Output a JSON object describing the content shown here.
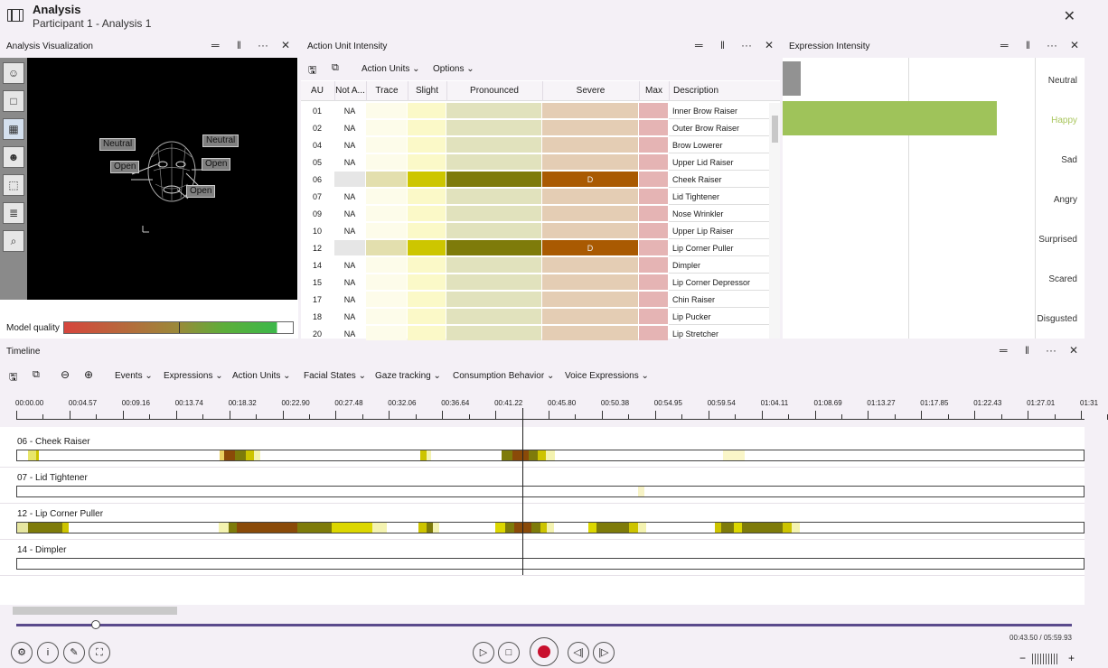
{
  "app": {
    "title": "Analysis",
    "subtitle": "Participant 1 - Analysis 1",
    "close": "✕"
  },
  "panel_controls": {
    "minimize": "═",
    "pin": "‖",
    "more": "···",
    "close": "✕"
  },
  "viz": {
    "title": "Analysis Visualization",
    "tools": [
      "person-icon",
      "square-icon",
      "grid-icon",
      "face-icon",
      "frame-icon",
      "chart-icon",
      "magnifier-icon"
    ],
    "face_labels": [
      "Neutral",
      "Neutral",
      "Open",
      "Open",
      "Open"
    ],
    "model_quality_label": "Model quality",
    "model_quality": 0.93
  },
  "au": {
    "title": "Action Unit Intensity",
    "toolbar": {
      "action_units": "Action Units",
      "options": "Options"
    },
    "columns": [
      "AU",
      "Not A...",
      "Trace",
      "Slight",
      "Pronounced",
      "Severe",
      "Max",
      "Description"
    ],
    "rows": [
      {
        "au": "01",
        "na": "NA",
        "sv": "",
        "desc": "Inner Brow Raiser",
        "hot": false
      },
      {
        "au": "02",
        "na": "NA",
        "sv": "",
        "desc": "Outer Brow Raiser",
        "hot": false
      },
      {
        "au": "04",
        "na": "NA",
        "sv": "",
        "desc": "Brow Lowerer",
        "hot": false
      },
      {
        "au": "05",
        "na": "NA",
        "sv": "",
        "desc": "Upper Lid Raiser",
        "hot": false
      },
      {
        "au": "06",
        "na": "",
        "sv": "D",
        "desc": "Cheek Raiser",
        "hot": true
      },
      {
        "au": "07",
        "na": "NA",
        "sv": "",
        "desc": "Lid Tightener",
        "hot": false
      },
      {
        "au": "09",
        "na": "NA",
        "sv": "",
        "desc": "Nose Wrinkler",
        "hot": false
      },
      {
        "au": "10",
        "na": "NA",
        "sv": "",
        "desc": "Upper Lip Raiser",
        "hot": false
      },
      {
        "au": "12",
        "na": "",
        "sv": "D",
        "desc": "Lip Corner Puller",
        "hot": true
      },
      {
        "au": "14",
        "na": "NA",
        "sv": "",
        "desc": "Dimpler",
        "hot": false
      },
      {
        "au": "15",
        "na": "NA",
        "sv": "",
        "desc": "Lip Corner Depressor",
        "hot": false
      },
      {
        "au": "17",
        "na": "NA",
        "sv": "",
        "desc": "Chin Raiser",
        "hot": false
      },
      {
        "au": "18",
        "na": "NA",
        "sv": "",
        "desc": "Lip Pucker",
        "hot": false
      },
      {
        "au": "20",
        "na": "NA",
        "sv": "",
        "desc": "Lip Stretcher",
        "hot": false
      }
    ]
  },
  "expression": {
    "title": "Expression Intensity",
    "labels": [
      "Neutral",
      "Happy",
      "Sad",
      "Angry",
      "Surprised",
      "Scared",
      "Disgusted"
    ],
    "values": [
      0.07,
      0.85,
      0,
      0,
      0,
      0,
      0
    ],
    "colors": [
      "#8c8c8c",
      "#9fc35a",
      "#9fc35a",
      "#9fc35a",
      "#9fc35a",
      "#9fc35a",
      "#9fc35a"
    ],
    "active_label_color": "#a9c65d"
  },
  "timeline": {
    "title": "Timeline",
    "menus": [
      "Events",
      "Expressions",
      "Action Units",
      "Facial States",
      "Gaze tracking",
      "Consumption Behavior",
      "Voice Expressions"
    ],
    "ticks": [
      "00:00.00",
      "00:04.57",
      "00:09.16",
      "00:13.74",
      "00:18.32",
      "00:22.90",
      "00:27.48",
      "00:32.06",
      "00:36.64",
      "00:41.22",
      "00:45.80",
      "00:50.38",
      "00:54.95",
      "00:59.54",
      "01:04.11",
      "01:08.69",
      "01:13.27",
      "01:17.85",
      "01:22.43",
      "01:27.01",
      "01:31"
    ],
    "tracks": [
      {
        "name": "06 - Cheek Raiser",
        "segments": [
          [
            0.01,
            0.018,
            "#e8e66a"
          ],
          [
            0.018,
            0.02,
            "#cdc400"
          ],
          [
            0.19,
            0.194,
            "#e9d060"
          ],
          [
            0.194,
            0.204,
            "#8a4a08"
          ],
          [
            0.204,
            0.214,
            "#7e7b0a"
          ],
          [
            0.214,
            0.222,
            "#cdc400"
          ],
          [
            0.222,
            0.228,
            "#f4f3b0"
          ],
          [
            0.378,
            0.384,
            "#cdc400"
          ],
          [
            0.384,
            0.388,
            "#f4f3b0"
          ],
          [
            0.454,
            0.464,
            "#7e7b0a"
          ],
          [
            0.464,
            0.48,
            "#8a4a08"
          ],
          [
            0.48,
            0.488,
            "#7e7b0a"
          ],
          [
            0.488,
            0.496,
            "#cdc400"
          ],
          [
            0.496,
            0.504,
            "#f4f3b0"
          ],
          [
            0.662,
            0.682,
            "#faf6c8"
          ]
        ]
      },
      {
        "name": "07 - Lid Tightener",
        "segments": [
          [
            0.582,
            0.588,
            "#f7f3c6"
          ]
        ]
      },
      {
        "name": "12 - Lip Corner Puller",
        "segments": [
          [
            0.0,
            0.01,
            "#e6e6a0"
          ],
          [
            0.01,
            0.042,
            "#7e7b0a"
          ],
          [
            0.042,
            0.048,
            "#cdc400"
          ],
          [
            0.189,
            0.198,
            "#f4f3b0"
          ],
          [
            0.198,
            0.206,
            "#7e7b0a"
          ],
          [
            0.206,
            0.263,
            "#8a4a08"
          ],
          [
            0.263,
            0.295,
            "#7e7b0a"
          ],
          [
            0.295,
            0.333,
            "#dcd700"
          ],
          [
            0.333,
            0.347,
            "#f4f3b0"
          ],
          [
            0.376,
            0.384,
            "#cdc400"
          ],
          [
            0.384,
            0.39,
            "#7e7b0a"
          ],
          [
            0.39,
            0.396,
            "#f4f3b0"
          ],
          [
            0.448,
            0.458,
            "#dcd700"
          ],
          [
            0.458,
            0.466,
            "#7e7b0a"
          ],
          [
            0.466,
            0.482,
            "#8a4a08"
          ],
          [
            0.482,
            0.491,
            "#7e7b0a"
          ],
          [
            0.491,
            0.497,
            "#cdc400"
          ],
          [
            0.497,
            0.503,
            "#f4f3b0"
          ],
          [
            0.536,
            0.543,
            "#dcd700"
          ],
          [
            0.543,
            0.574,
            "#7e7b0a"
          ],
          [
            0.574,
            0.582,
            "#cdc400"
          ],
          [
            0.582,
            0.59,
            "#f4f3b0"
          ],
          [
            0.654,
            0.66,
            "#cdc400"
          ],
          [
            0.66,
            0.672,
            "#7e7b0a"
          ],
          [
            0.672,
            0.68,
            "#dcd700"
          ],
          [
            0.68,
            0.718,
            "#7e7b0a"
          ],
          [
            0.718,
            0.726,
            "#cdc400"
          ],
          [
            0.726,
            0.734,
            "#f4f3b0"
          ]
        ]
      },
      {
        "name": "14 - Dimpler",
        "segments": []
      }
    ]
  },
  "playback": {
    "time": "00:43.50 / 05:59.93",
    "position": 0.075,
    "zoom_minus": "−",
    "zoom_plus": "+"
  }
}
